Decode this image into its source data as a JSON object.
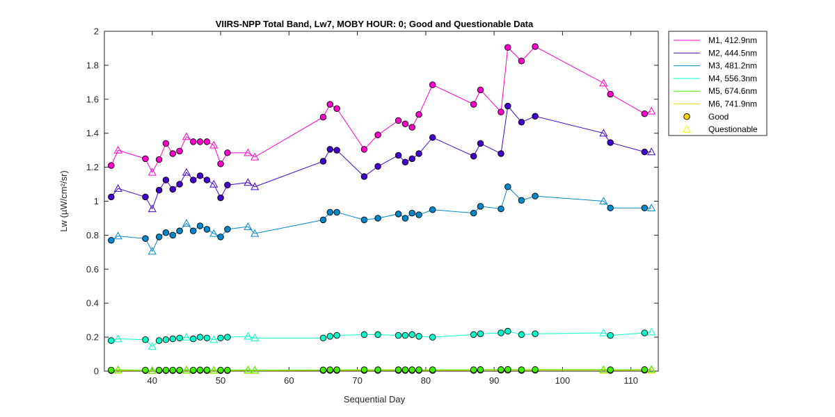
{
  "chart_data": {
    "type": "line",
    "title": "VIIRS-NPP Total Band,  Lw7, MOBY HOUR: 0;  Good and Questionable Data",
    "xlabel": "Sequential Day",
    "ylabel": "Lw (µW/cm²/sr)",
    "xlim": [
      33,
      114
    ],
    "ylim": [
      0,
      2
    ],
    "xticks": [
      40,
      50,
      60,
      70,
      80,
      90,
      100,
      110
    ],
    "yticks": [
      0,
      0.2,
      0.4,
      0.6,
      0.8,
      1,
      1.2,
      1.4,
      1.6,
      1.8,
      2
    ],
    "ytick_labels": [
      "0",
      "0.2",
      "0.4",
      "0.6",
      "0.8",
      "1",
      "1.2",
      "1.4",
      "1.6",
      "1.8",
      "2"
    ],
    "grid": false,
    "legend_position": "outside-top-right",
    "x": [
      34,
      35,
      39,
      40,
      41,
      42,
      43,
      44,
      45,
      46,
      47,
      48,
      49,
      50,
      51,
      54,
      55,
      65,
      66,
      67,
      71,
      73,
      76,
      77,
      78,
      79,
      81,
      87,
      88,
      91,
      92,
      94,
      96,
      106,
      107,
      112,
      113
    ],
    "quality": [
      "G",
      "Q",
      "G",
      "Q",
      "G",
      "G",
      "G",
      "G",
      "Q",
      "G",
      "G",
      "G",
      "Q",
      "G",
      "G",
      "Q",
      "Q",
      "G",
      "G",
      "G",
      "G",
      "G",
      "G",
      "G",
      "G",
      "G",
      "G",
      "G",
      "G",
      "G",
      "G",
      "G",
      "G",
      "Q",
      "G",
      "G",
      "Q"
    ],
    "series": [
      {
        "name": "M1, 412.9nm",
        "color": "#ff00cc",
        "values": [
          1.21,
          1.3,
          1.25,
          1.17,
          1.245,
          1.34,
          1.28,
          1.295,
          1.38,
          1.35,
          1.35,
          1.35,
          1.33,
          1.22,
          1.285,
          1.285,
          1.26,
          1.495,
          1.57,
          1.545,
          1.305,
          1.39,
          1.475,
          1.455,
          1.435,
          1.51,
          1.685,
          1.57,
          1.655,
          1.525,
          1.905,
          1.825,
          1.91,
          1.695,
          1.63,
          1.515,
          1.53
        ]
      },
      {
        "name": "M2, 444.5nm",
        "color": "#4400cc",
        "values": [
          1.025,
          1.075,
          1.025,
          0.955,
          1.065,
          1.125,
          1.07,
          1.1,
          1.17,
          1.125,
          1.15,
          1.125,
          1.1,
          1.02,
          1.095,
          1.11,
          1.085,
          1.235,
          1.305,
          1.3,
          1.145,
          1.205,
          1.27,
          1.23,
          1.25,
          1.28,
          1.375,
          1.265,
          1.34,
          1.28,
          1.56,
          1.465,
          1.5,
          1.4,
          1.345,
          1.29,
          1.29
        ]
      },
      {
        "name": "M3, 481.2nm",
        "color": "#0088cc",
        "values": [
          0.77,
          0.795,
          0.78,
          0.705,
          0.79,
          0.815,
          0.8,
          0.825,
          0.87,
          0.825,
          0.855,
          0.835,
          0.81,
          0.79,
          0.835,
          0.85,
          0.81,
          0.89,
          0.935,
          0.935,
          0.89,
          0.9,
          0.925,
          0.9,
          0.93,
          0.92,
          0.95,
          0.93,
          0.97,
          0.955,
          1.085,
          1.005,
          1.03,
          1.0,
          0.96,
          0.96,
          0.96
        ]
      },
      {
        "name": "M4, 556.3nm",
        "color": "#00ffcc",
        "values": [
          0.18,
          0.19,
          0.185,
          0.145,
          0.18,
          0.185,
          0.19,
          0.195,
          0.2,
          0.19,
          0.2,
          0.195,
          0.185,
          0.195,
          0.2,
          0.205,
          0.195,
          0.195,
          0.205,
          0.21,
          0.215,
          0.215,
          0.21,
          0.21,
          0.215,
          0.205,
          0.2,
          0.215,
          0.22,
          0.225,
          0.235,
          0.215,
          0.22,
          0.225,
          0.21,
          0.225,
          0.23
        ]
      },
      {
        "name": "M5, 674.6nm",
        "color": "#44ee00",
        "values": [
          0.006,
          0.008,
          0.006,
          0.004,
          0.006,
          0.006,
          0.006,
          0.006,
          0.007,
          0.006,
          0.007,
          0.007,
          0.006,
          0.006,
          0.006,
          0.007,
          0.006,
          0.007,
          0.008,
          0.008,
          0.008,
          0.008,
          0.008,
          0.008,
          0.008,
          0.008,
          0.008,
          0.008,
          0.009,
          0.009,
          0.01,
          0.008,
          0.009,
          0.009,
          0.008,
          0.009,
          0.01
        ]
      },
      {
        "name": "M6, 741.9nm",
        "color": "#ffdd00",
        "values": [
          0.003,
          0.004,
          0.003,
          0.002,
          0.003,
          0.003,
          0.003,
          0.003,
          0.004,
          0.003,
          0.004,
          0.003,
          0.003,
          0.003,
          0.003,
          0.004,
          0.003,
          0.004,
          0.004,
          0.004,
          0.004,
          0.004,
          0.004,
          0.004,
          0.004,
          0.004,
          0.004,
          0.004,
          0.005,
          0.005,
          0.005,
          0.004,
          0.005,
          0.005,
          0.004,
          0.005,
          0.005
        ]
      }
    ],
    "legend_markers": [
      {
        "name": "Good",
        "marker": "circle",
        "color": "#ffd700"
      },
      {
        "name": "Questionable",
        "marker": "triangle",
        "color": "#ffff00"
      }
    ]
  }
}
